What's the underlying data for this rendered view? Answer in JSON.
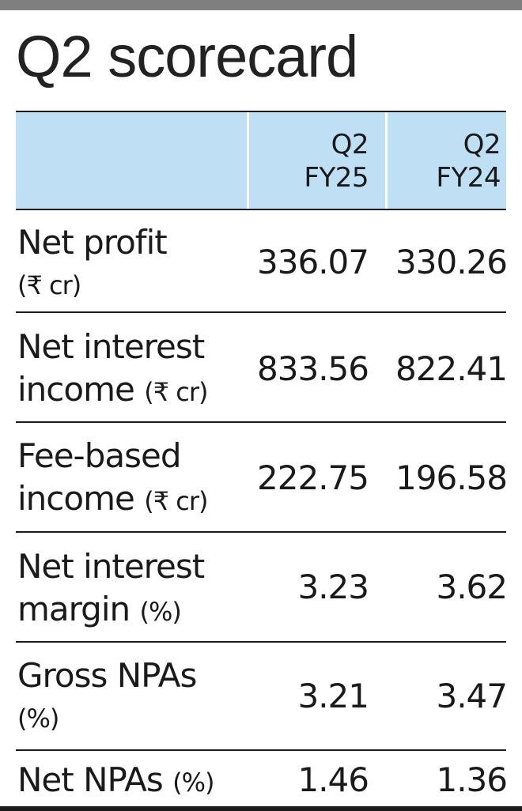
{
  "title": "Q2 scorecard",
  "columns": [
    {
      "line1": "Q2",
      "line2": "FY25"
    },
    {
      "line1": "Q2",
      "line2": "FY24"
    }
  ],
  "rows": [
    {
      "label_line1": "Net profit",
      "label_line2": "",
      "unit": "(₹ cr)",
      "q2_fy25": "336.07",
      "q2_fy24": "330.26"
    },
    {
      "label_line1": "Net interest",
      "label_line2": "income",
      "unit": "(₹ cr)",
      "q2_fy25": "833.56",
      "q2_fy24": "822.41"
    },
    {
      "label_line1": "Fee-based",
      "label_line2": "income",
      "unit": "(₹ cr)",
      "q2_fy25": "222.75",
      "q2_fy24": "196.58"
    },
    {
      "label_line1": "Net interest",
      "label_line2": "margin",
      "unit": "(%)",
      "q2_fy25": "3.23",
      "q2_fy24": "3.62"
    },
    {
      "label_line1": "Gross NPAs",
      "label_line2": "",
      "unit": "(%)",
      "q2_fy25": "3.21",
      "q2_fy24": "3.47"
    },
    {
      "label_line1": "Net NPAs",
      "label_line2": "",
      "unit": "(%)",
      "q2_fy25": "1.46",
      "q2_fy24": "1.36"
    }
  ],
  "colors": {
    "header_bg": "#bfe0f4",
    "top_bar": "#7f7f7f",
    "text": "#1a1a1a"
  }
}
